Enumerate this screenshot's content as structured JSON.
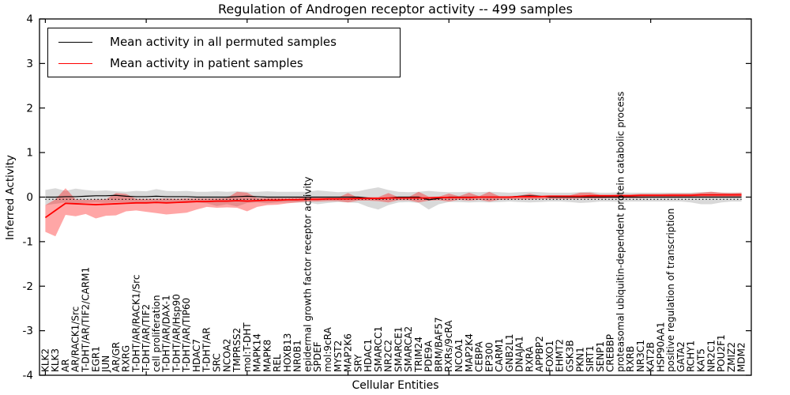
{
  "figure": {
    "title": "Regulation of Androgen receptor activity -- 499 samples",
    "xlabel": "Cellular Entities",
    "ylabel": "Inferred Activity"
  },
  "legend": {
    "position": "upper left",
    "entries": [
      {
        "label": "Mean activity in all permuted samples",
        "color": "#000000"
      },
      {
        "label": "Mean activity in patient samples",
        "color": "#ff0000"
      }
    ]
  },
  "chart_data": {
    "type": "line",
    "title": "Regulation of Androgen receptor activity -- 499 samples",
    "xlabel": "Cellular Entities",
    "ylabel": "Inferred Activity",
    "ylim": [
      -4,
      4
    ],
    "yticks": [
      "4",
      "3",
      "2",
      "1",
      "0",
      "-1",
      "-2",
      "-3",
      "-4"
    ],
    "ytick_values": [
      4,
      3,
      2,
      1,
      0,
      -1,
      -2,
      -3,
      -4
    ],
    "grid": false,
    "legend_position": "upper left",
    "categories": [
      "KLK2",
      "KLK3",
      "AR",
      "AR/RACK1/Src",
      "T-DHT/AR/TIF2/CARM1",
      "EGR1",
      "JUN",
      "AR/GR",
      "RXRG",
      "T-DHT/AR/RACK1/Src",
      "T-DHT/AR/TIF2",
      "cell proliferation",
      "T-DHT/AR/DAX-1",
      "T-DHT/AR/Hsp90",
      "T-DHT/AR/TIP60",
      "HDAC7",
      "T-DHT/AR",
      "SRC",
      "NCOA2",
      "TMPRSS2",
      "mol:T-DHT",
      "MAPK14",
      "MAPK8",
      "REL",
      "HOXB13",
      "NR0B1",
      "epidermal growth factor receptor activity",
      "SPDEF",
      "mol:9cRA",
      "MYST2",
      "MAP2K6",
      "SRY",
      "HDAC1",
      "SMARCC1",
      "NR2C2",
      "SMARCE1",
      "SMARCA2",
      "TRIM24",
      "PDE9A",
      "BRM/BAF57",
      "RXRs/9cRA",
      "NCOA1",
      "MAP2K4",
      "CEBPA",
      "EP300",
      "CARM1",
      "GNB2L1",
      "DNAJA1",
      "RXRA",
      "APPBP2",
      "FOXO1",
      "EHMT2",
      "GSK3B",
      "PKN1",
      "SIRT1",
      "SENP1",
      "CREBBP",
      "proteasomal ubiquitin-dependent protein catabolic process",
      "RXRB",
      "NR3C1",
      "KAT2B",
      "HSP90AA1",
      "positive regulation of transcription",
      "GATA2",
      "RCHY1",
      "KAT5",
      "NR2C1",
      "POU2F1",
      "ZMIZ2",
      "MDM2"
    ],
    "series": [
      {
        "name": "Mean activity in all permuted samples",
        "color": "#000000",
        "width": 1.2,
        "values": [
          0,
          0,
          0.01,
          0.01,
          0.02,
          0.03,
          0.03,
          0.04,
          0.02,
          0.01,
          0.01,
          0.02,
          0.01,
          0.01,
          0.01,
          0,
          0,
          0,
          0,
          0.01,
          0.02,
          0.01,
          0,
          0,
          0,
          0,
          0,
          0,
          0,
          0,
          0,
          0,
          -0.02,
          -0.04,
          -0.02,
          0,
          0,
          0,
          -0.06,
          -0.03,
          0,
          0,
          0,
          0,
          0,
          0,
          0,
          0.02,
          0.03,
          0.02,
          0,
          0,
          0,
          0,
          0,
          0,
          0,
          0,
          0,
          0,
          0,
          0,
          0,
          0,
          0,
          0,
          0,
          0,
          0,
          0
        ]
      },
      {
        "name": "Mean activity in patient samples",
        "color": "#ff0000",
        "width": 1.8,
        "values": [
          -0.46,
          -0.3,
          -0.14,
          -0.15,
          -0.16,
          -0.17,
          -0.16,
          -0.15,
          -0.14,
          -0.13,
          -0.13,
          -0.12,
          -0.13,
          -0.12,
          -0.11,
          -0.1,
          -0.1,
          -0.09,
          -0.09,
          -0.08,
          -0.09,
          -0.08,
          -0.07,
          -0.07,
          -0.06,
          -0.06,
          -0.05,
          -0.05,
          -0.04,
          -0.04,
          -0.04,
          -0.03,
          -0.03,
          -0.03,
          -0.02,
          -0.02,
          -0.02,
          -0.02,
          -0.02,
          -0.01,
          -0.01,
          -0.01,
          -0.01,
          0,
          0,
          0,
          0,
          0.01,
          0.01,
          0.01,
          0.02,
          0.02,
          0.02,
          0.02,
          0.03,
          0.03,
          0.03,
          0.03,
          0.03,
          0.04,
          0.04,
          0.04,
          0.04,
          0.04,
          0.04,
          0.05,
          0.05,
          0.05,
          0.05,
          0.05
        ]
      }
    ],
    "bands": [
      {
        "name": "permuted-samples-band",
        "color": "rgba(128,128,128,0.30)",
        "high": [
          0.16,
          0.2,
          0.14,
          0.19,
          0.16,
          0.14,
          0.15,
          0.13,
          0.12,
          0.14,
          0.13,
          0.18,
          0.14,
          0.13,
          0.14,
          0.12,
          0.12,
          0.13,
          0.12,
          0.13,
          0.12,
          0.12,
          0.13,
          0.12,
          0.12,
          0.12,
          0.12,
          0.15,
          0.13,
          0.11,
          0.12,
          0.13,
          0.18,
          0.22,
          0.16,
          0.12,
          0.11,
          0.12,
          0.14,
          0.12,
          0.11,
          0.11,
          0.12,
          0.11,
          0.12,
          0.11,
          0.1,
          0.11,
          0.12,
          0.11,
          0.1,
          0.1,
          0.1,
          0.11,
          0.12,
          0.1,
          0.1,
          0.11,
          0.1,
          0.1,
          0.1,
          0.1,
          0.1,
          0.1,
          0.1,
          0.11,
          0.12,
          0.1,
          0.1,
          0.1
        ],
        "low": [
          -0.18,
          -0.15,
          -0.12,
          -0.14,
          -0.13,
          -0.12,
          -0.13,
          -0.12,
          -0.12,
          -0.13,
          -0.12,
          -0.14,
          -0.12,
          -0.12,
          -0.13,
          -0.12,
          -0.14,
          -0.2,
          -0.16,
          -0.21,
          -0.13,
          -0.12,
          -0.14,
          -0.12,
          -0.12,
          -0.12,
          -0.12,
          -0.16,
          -0.13,
          -0.11,
          -0.12,
          -0.13,
          -0.22,
          -0.28,
          -0.18,
          -0.12,
          -0.11,
          -0.13,
          -0.28,
          -0.16,
          -0.11,
          -0.11,
          -0.12,
          -0.11,
          -0.12,
          -0.11,
          -0.1,
          -0.11,
          -0.12,
          -0.11,
          -0.1,
          -0.1,
          -0.11,
          -0.13,
          -0.12,
          -0.1,
          -0.1,
          -0.11,
          -0.1,
          -0.1,
          -0.1,
          -0.1,
          -0.1,
          -0.1,
          -0.12,
          -0.16,
          -0.16,
          -0.12,
          -0.1,
          -0.1
        ]
      },
      {
        "name": "patient-samples-band",
        "color": "rgba(255,0,0,0.35)",
        "high": [
          -0.18,
          -0.05,
          0.2,
          -0.05,
          -0.06,
          -0.05,
          -0.05,
          0.09,
          0.07,
          -0.04,
          -0.04,
          -0.04,
          -0.03,
          -0.04,
          -0.03,
          -0.03,
          -0.03,
          -0.03,
          -0.02,
          0.12,
          0.1,
          -0.02,
          -0.02,
          -0.02,
          -0.02,
          -0.01,
          -0.01,
          -0.01,
          -0.01,
          -0.01,
          0.09,
          -0.01,
          0,
          0,
          0.09,
          0,
          0,
          0.12,
          0.01,
          0.01,
          0.08,
          0.02,
          0.1,
          0.02,
          0.12,
          0.02,
          0.02,
          0.03,
          0.08,
          0.03,
          0.04,
          0.04,
          0.04,
          0.1,
          0.1,
          0.05,
          0.05,
          0.06,
          0.06,
          0.07,
          0.07,
          0.07,
          0.08,
          0.08,
          0.08,
          0.1,
          0.12,
          0.1,
          0.09,
          0.1
        ],
        "low": [
          -0.78,
          -0.88,
          -0.4,
          -0.43,
          -0.38,
          -0.48,
          -0.42,
          -0.41,
          -0.32,
          -0.3,
          -0.33,
          -0.36,
          -0.39,
          -0.37,
          -0.35,
          -0.28,
          -0.22,
          -0.24,
          -0.23,
          -0.24,
          -0.32,
          -0.22,
          -0.18,
          -0.17,
          -0.14,
          -0.12,
          -0.1,
          -0.1,
          -0.09,
          -0.09,
          -0.12,
          -0.08,
          -0.08,
          -0.09,
          -0.12,
          -0.07,
          -0.07,
          -0.12,
          -0.08,
          -0.07,
          -0.1,
          -0.06,
          -0.08,
          -0.06,
          -0.1,
          -0.06,
          -0.05,
          -0.05,
          -0.05,
          -0.04,
          -0.04,
          -0.04,
          -0.04,
          -0.03,
          -0.03,
          -0.03,
          -0.02,
          -0.02,
          -0.02,
          -0.02,
          -0.01,
          -0.01,
          -0.01,
          -0.01,
          0,
          0,
          0,
          0,
          0,
          0
        ]
      }
    ],
    "reference_line": {
      "style": "dotted",
      "color": "#000000",
      "value": -0.05
    }
  }
}
